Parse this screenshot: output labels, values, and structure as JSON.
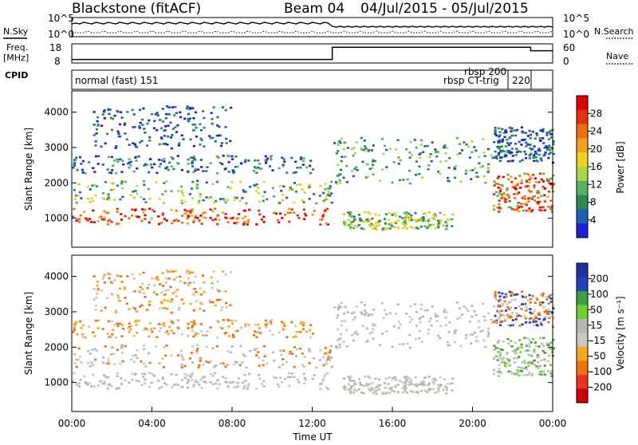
{
  "header": {
    "station": "Blackstone (fitACF)",
    "beam": "Beam 04",
    "dates": "04/Jul/2015 - 05/Jul/2015"
  },
  "colors": {
    "power": [
      "#1f1fd6",
      "#1f5fb0",
      "#2f8a52",
      "#58b060",
      "#a8d84a",
      "#f0d020",
      "#f5a020",
      "#f07010",
      "#e83010",
      "#e00000"
    ],
    "velocity": [
      "#d00000",
      "#ef3020",
      "#f07010",
      "#f5a820",
      "#c8c8c0",
      "#b8b8b0",
      "#70d030",
      "#40a040",
      "#2040c0",
      "#2030a0"
    ]
  },
  "chart_data": [
    {
      "type": "line",
      "name": "status-panel",
      "left_labels": [
        "N.Sky",
        "Freq.",
        "[MHz]",
        "CPID"
      ],
      "right_labels": [
        "N.Search",
        "Nave"
      ],
      "left_ticks_top": [
        "10^5",
        "10^0"
      ],
      "right_ticks_top": [
        "10^5",
        "10^0"
      ],
      "left_ticks_freq": [
        "18",
        "8"
      ],
      "right_ticks_nave": [
        "60",
        "0"
      ],
      "cpid_labels": [
        "normal (fast) 151",
        "rbsp 200",
        "rbsp CT-trig",
        "220"
      ],
      "freq_steps": [
        {
          "x": 0,
          "y": 10
        },
        {
          "x": 13.0,
          "y": 10
        },
        {
          "x": 13.0,
          "y": 17
        },
        {
          "x": 22.9,
          "y": 17
        },
        {
          "x": 22.9,
          "y": 15
        },
        {
          "x": 24,
          "y": 15
        }
      ]
    },
    {
      "type": "heatmap",
      "name": "power",
      "ylabel": "Slant Range [km]",
      "yticks": [
        "1000",
        "2000",
        "3000",
        "4000"
      ],
      "colorbar_label": "Power [dB]",
      "colorbar_ticks": [
        "4",
        "8",
        "12",
        "16",
        "20",
        "24",
        "28"
      ]
    },
    {
      "type": "heatmap",
      "name": "velocity",
      "ylabel": "Slant Range [km]",
      "yticks": [
        "1000",
        "2000",
        "3000",
        "4000"
      ],
      "colorbar_label": "Velocity [m s⁻¹]",
      "colorbar_ticks": [
        "200",
        "100",
        "50",
        "15",
        "-15",
        "-50",
        "-100",
        "-200"
      ]
    }
  ],
  "xaxis": {
    "label": "Time UT",
    "ticks": [
      "00:00",
      "04:00",
      "08:00",
      "12:00",
      "16:00",
      "20:00",
      "00:00"
    ]
  }
}
